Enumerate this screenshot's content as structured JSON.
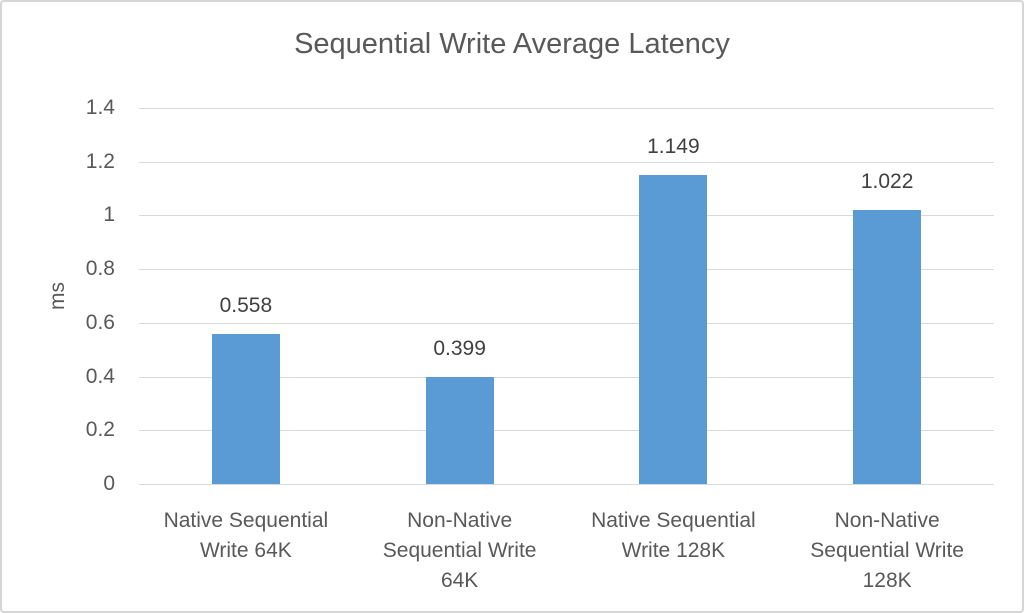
{
  "chart_data": {
    "type": "bar",
    "title": "Sequential Write Average Latency",
    "xlabel": "",
    "ylabel": "ms",
    "categories": [
      "Native Sequential Write 64K",
      "Non-Native Sequential Write 64K",
      "Native Sequential Write 128K",
      "Non-Native Sequential Write 128K"
    ],
    "category_display_lines": [
      [
        "Native Sequential",
        "Write 64K"
      ],
      [
        "Non-Native",
        "Sequential Write",
        "64K"
      ],
      [
        "Native Sequential",
        "Write 128K"
      ],
      [
        "Non-Native",
        "Sequential Write",
        "128K"
      ]
    ],
    "values": [
      0.558,
      0.399,
      1.149,
      1.022
    ],
    "data_labels": [
      "0.558",
      "0.399",
      "1.149",
      "1.022"
    ],
    "ylim": [
      0,
      1.4
    ],
    "ytick_labels": [
      "1.4",
      "1.2",
      "1",
      "0.8",
      "0.6",
      "0.4",
      "0.2",
      "0"
    ],
    "grid": true,
    "legend": false,
    "colors": {
      "bar": "#5B9BD5",
      "gridline": "#D9D9D9",
      "axis_text": "#595959",
      "data_label_text": "#404040",
      "title_text": "#595959",
      "frame_border": "#D6D6D6",
      "background": "#FFFFFF"
    }
  }
}
